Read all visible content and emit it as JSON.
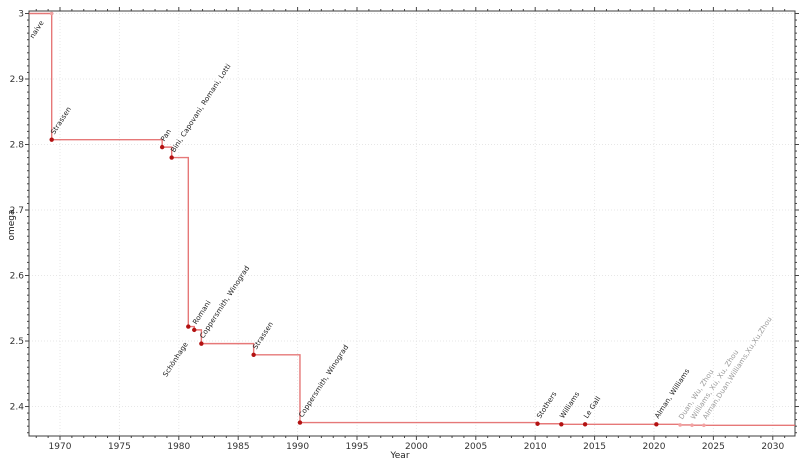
{
  "chart_data": {
    "type": "line",
    "step_style": "post",
    "title": "",
    "xlabel": "Year",
    "ylabel": "omega",
    "xlim": [
      1967.39,
      2031.87
    ],
    "ylim": [
      2.355,
      3.0038
    ],
    "x_ticks": [
      1970,
      1975,
      1980,
      1985,
      1990,
      1995,
      2000,
      2005,
      2010,
      2015,
      2020,
      2025,
      2030
    ],
    "x_minor_step": 1,
    "y_ticks": [
      {
        "value": 3.0,
        "label": "3"
      },
      {
        "value": 2.9,
        "label": "2.9"
      },
      {
        "value": 2.8,
        "label": "2.8"
      },
      {
        "value": 2.7,
        "label": "2.7"
      },
      {
        "value": 2.6,
        "label": "2.6"
      },
      {
        "value": 2.5,
        "label": "2.5"
      },
      {
        "value": 2.4,
        "label": "2.4"
      }
    ],
    "y_minor_step": 0.01,
    "grid": {
      "show": true,
      "style": "dotted",
      "which": "major"
    },
    "legend": {
      "show": false
    },
    "colors": {
      "line": "#e26060",
      "marker_dark": "#b31212",
      "marker_light": "#f2a2a2",
      "label": "#1a1a1a",
      "label_muted": "#9a9a9a",
      "grid": "#e7e7e7",
      "spine": "#3c3c3c",
      "tick": "#444444"
    },
    "points": [
      {
        "x": 1969.3,
        "omega": 3.0,
        "label": "naive",
        "marker": "light",
        "label_style": "normal",
        "anchor": "below"
      },
      {
        "x": 1969.3,
        "omega": 2.8074,
        "label": "Strassen",
        "marker": "dark",
        "label_style": "normal",
        "anchor": "start"
      },
      {
        "x": 1978.6,
        "omega": 2.796,
        "label": "Pan",
        "marker": "dark",
        "label_style": "normal",
        "anchor": "start"
      },
      {
        "x": 1979.4,
        "omega": 2.78,
        "label": "Bini, Capovani, Romani, Lotti",
        "marker": "dark",
        "label_style": "normal",
        "anchor": "start"
      },
      {
        "x": 1980.8,
        "omega": 2.522,
        "label": "Schönhage",
        "marker": "dark",
        "label_style": "normal",
        "anchor": "end"
      },
      {
        "x": 1981.3,
        "omega": 2.517,
        "label": "Romani",
        "marker": "dark",
        "label_style": "normal",
        "anchor": "start"
      },
      {
        "x": 1981.9,
        "omega": 2.496,
        "label": "Coppersmith, Winograd",
        "marker": "dark",
        "label_style": "normal",
        "anchor": "start"
      },
      {
        "x": 1986.3,
        "omega": 2.479,
        "label": "Strassen",
        "marker": "dark",
        "label_style": "normal",
        "anchor": "start"
      },
      {
        "x": 1990.2,
        "omega": 2.3755,
        "label": "Coppersmith, Winograd",
        "marker": "dark",
        "label_style": "normal",
        "anchor": "start"
      },
      {
        "x": 2010.2,
        "omega": 2.3737,
        "label": "Stothers",
        "marker": "dark",
        "label_style": "normal",
        "anchor": "start"
      },
      {
        "x": 2012.2,
        "omega": 2.3729,
        "label": "Williams",
        "marker": "dark",
        "label_style": "normal",
        "anchor": "start"
      },
      {
        "x": 2014.2,
        "omega": 2.3728639,
        "label": "Le Gall",
        "marker": "dark",
        "label_style": "normal",
        "anchor": "start"
      },
      {
        "x": 2020.2,
        "omega": 2.3728596,
        "label": "Alman, Williams",
        "marker": "dark",
        "label_style": "normal",
        "anchor": "start"
      },
      {
        "x": 2022.2,
        "omega": 2.371866,
        "label": "Duan, Wu, Zhou",
        "marker": "light",
        "label_style": "muted",
        "anchor": "start"
      },
      {
        "x": 2023.2,
        "omega": 2.371552,
        "label": "Williams, Xu, Xu, Zhou",
        "marker": "light",
        "label_style": "muted",
        "anchor": "start"
      },
      {
        "x": 2024.2,
        "omega": 2.371339,
        "label": "Alman,Duan,Williams,Xu,Xu,Zhou",
        "marker": "light",
        "label_style": "muted",
        "anchor": "start"
      }
    ]
  }
}
